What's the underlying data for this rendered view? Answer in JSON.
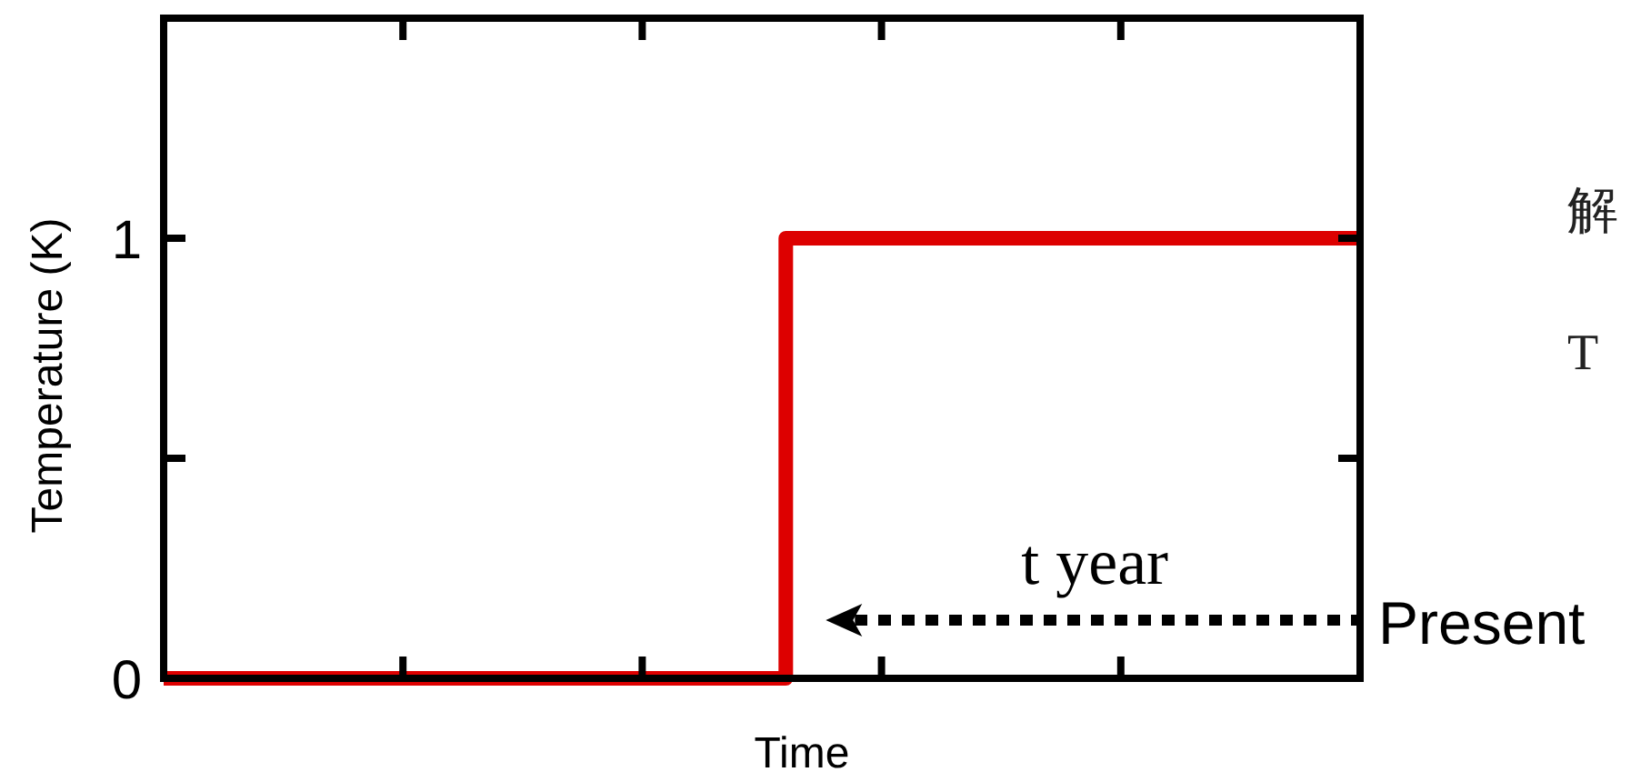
{
  "chart_data": {
    "type": "step",
    "xlabel": "Time",
    "ylabel": "Temperature (K)",
    "categories": [
      null,
      null,
      null,
      null,
      null,
      null,
      null,
      null,
      null,
      null,
      null,
      null,
      null,
      null,
      null,
      null,
      null,
      null,
      null,
      null,
      null,
      null,
      null,
      null,
      null,
      null
    ],
    "ylim": [
      0,
      1.5
    ],
    "yticks": [
      0,
      {
        "value": 0.5,
        "label": null
      },
      1
    ],
    "series": [
      {
        "color": "#dd0000",
        "values": [
          0,
          0,
          0,
          0,
          0,
          0,
          0,
          0,
          0,
          0,
          0,
          0,
          0,
          1,
          1,
          1,
          1,
          1,
          1,
          1,
          1,
          1,
          1,
          1,
          1,
          1
        ]
      }
    ],
    "annotations": [
      "Present",
      "t year",
      "解",
      "T"
    ],
    "grid": false
  }
}
